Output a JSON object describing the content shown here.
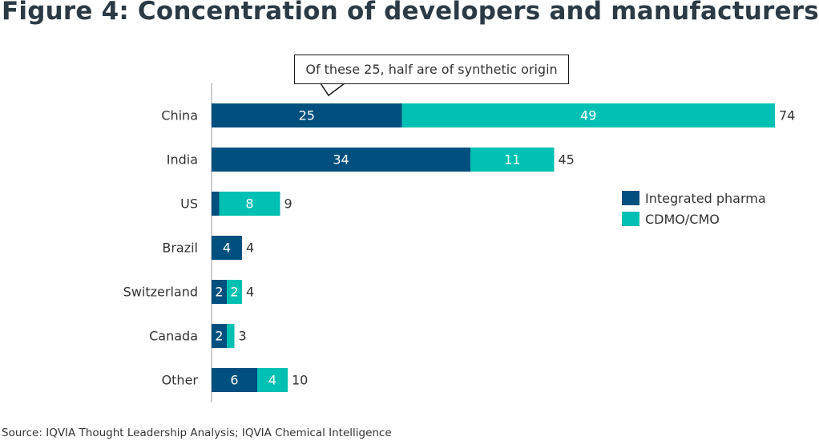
{
  "title": "Figure 4: Concentration of developers and manufacturers",
  "source": "Source: IQVIA Thought Leadership Analysis; IQVIA Chemical Intelligence",
  "annotation": "Of these 25, half are of synthetic origin",
  "colors": {
    "integrated": "#00507f",
    "cdmo": "#00bfb3",
    "label": "#333333",
    "axis": "#999999"
  },
  "chart_data": {
    "type": "bar",
    "orientation": "horizontal",
    "stacked": true,
    "categories": [
      "China",
      "India",
      "US",
      "Brazil",
      "Switzerland",
      "Canada",
      "Other"
    ],
    "series": [
      {
        "name": "Integrated pharma",
        "values": [
          25,
          34,
          1,
          4,
          2,
          2,
          6
        ]
      },
      {
        "name": "CDMO/CMO",
        "values": [
          49,
          11,
          8,
          0,
          2,
          1,
          4
        ]
      }
    ],
    "totals": [
      74,
      45,
      9,
      4,
      4,
      3,
      10
    ],
    "xlim": [
      0,
      74
    ],
    "legend_position": "right",
    "grid": false
  }
}
